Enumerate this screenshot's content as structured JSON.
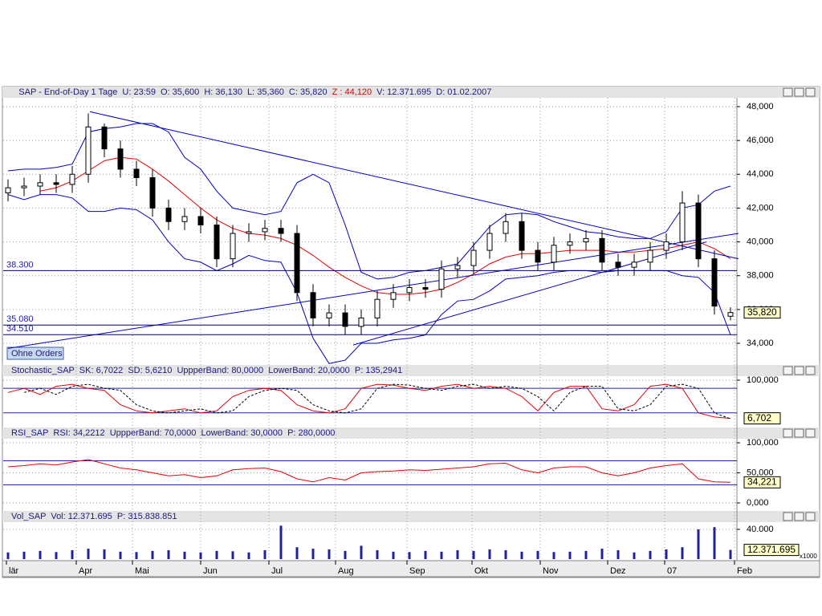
{
  "header": {
    "title": "SAP - End-of-Day 1 Tage",
    "fields": [
      "U: 23:59",
      "O: 35,600",
      "H: 36,130",
      "L: 35,360",
      "C: 35,820"
    ],
    "z": "Z : 44,120",
    "fields2": [
      "V: 12.371.695",
      "D: 01.02.2007"
    ]
  },
  "price": {
    "type": "candlestick",
    "open": [
      42.9,
      43.2,
      43.3,
      43.5,
      43.4,
      44.0,
      46.8,
      45.5,
      44.3,
      43.8,
      42.0,
      41.2,
      41.5,
      41.0,
      39.0,
      40.5,
      40.6,
      40.8,
      40.5,
      37.0,
      35.5,
      35.8,
      35.0,
      35.5,
      36.6,
      37.0,
      37.3,
      37.2,
      38.4,
      38.6,
      39.5,
      40.5,
      41.2,
      39.5,
      38.8,
      39.8,
      40.0,
      40.2,
      38.8,
      38.5,
      38.8,
      39.5,
      40.0,
      42.3,
      39.0,
      35.6
    ],
    "high": [
      43.7,
      43.8,
      44.0,
      44.0,
      44.5,
      47.6,
      47.0,
      46.0,
      44.8,
      44.3,
      42.5,
      42.0,
      42.0,
      41.5,
      41.0,
      41.1,
      41.3,
      41.3,
      41.0,
      37.5,
      36.3,
      36.3,
      36.0,
      37.1,
      37.5,
      37.8,
      37.8,
      38.9,
      39.1,
      40.0,
      41.0,
      41.7,
      41.7,
      40.0,
      40.3,
      40.5,
      40.7,
      40.7,
      39.3,
      39.3,
      40.0,
      40.5,
      43.0,
      42.8,
      39.5,
      36.13
    ],
    "low": [
      42.4,
      42.7,
      42.8,
      42.9,
      42.9,
      43.5,
      45.0,
      43.8,
      43.3,
      41.5,
      40.7,
      40.7,
      40.5,
      38.5,
      38.5,
      40.0,
      40.1,
      40.0,
      36.5,
      35.0,
      35.0,
      34.5,
      34.5,
      35.0,
      36.1,
      36.5,
      36.7,
      36.7,
      37.9,
      38.1,
      39.0,
      40.0,
      39.0,
      38.3,
      38.3,
      39.3,
      39.5,
      38.3,
      38.0,
      38.0,
      38.3,
      39.0,
      39.5,
      38.5,
      35.7,
      35.36
    ],
    "close": [
      43.2,
      43.3,
      43.5,
      43.4,
      44.0,
      46.8,
      45.5,
      44.3,
      43.8,
      42.0,
      41.2,
      41.5,
      41.0,
      39.0,
      40.5,
      40.6,
      40.8,
      40.5,
      37.0,
      35.5,
      35.8,
      35.0,
      35.5,
      36.6,
      37.0,
      37.3,
      37.2,
      38.4,
      38.6,
      39.5,
      40.5,
      41.2,
      39.5,
      38.8,
      39.8,
      40.0,
      40.2,
      38.8,
      38.5,
      38.8,
      39.5,
      40.0,
      42.3,
      39.0,
      36.2,
      35.82
    ],
    "ma": {
      "color": "#e00000",
      "values": [
        null,
        null,
        43.0,
        43.2,
        43.6,
        44.2,
        44.8,
        45.0,
        44.9,
        44.3,
        43.6,
        42.8,
        42.0,
        41.3,
        40.8,
        40.5,
        40.4,
        40.2,
        39.8,
        39.2,
        38.5,
        37.9,
        37.4,
        37.0,
        36.9,
        36.9,
        37.0,
        37.2,
        37.6,
        38.1,
        38.7,
        39.1,
        39.3,
        39.3,
        39.4,
        39.5,
        39.5,
        39.5,
        39.4,
        39.4,
        39.5,
        39.6,
        39.8,
        40.0,
        39.6,
        39.0
      ]
    },
    "upper": {
      "color": "#0000c0",
      "values": [
        44.2,
        44.3,
        44.3,
        44.4,
        44.6,
        46.5,
        46.7,
        46.8,
        47.0,
        47.0,
        46.5,
        45.0,
        44.3,
        43.0,
        42.0,
        41.8,
        41.6,
        41.8,
        43.5,
        44.0,
        43.5,
        41.0,
        38.2,
        37.8,
        37.9,
        38.2,
        38.3,
        38.5,
        38.7,
        39.8,
        40.9,
        41.6,
        41.7,
        41.6,
        41.2,
        40.9,
        40.6,
        40.5,
        40.3,
        40.2,
        40.2,
        40.6,
        42.0,
        42.2,
        43.0,
        43.3
      ]
    },
    "lower": {
      "color": "#0000c0",
      "values": [
        42.8,
        42.5,
        42.8,
        42.8,
        42.6,
        41.8,
        41.8,
        42.0,
        41.9,
        41.3,
        40.0,
        39.0,
        38.8,
        38.3,
        38.7,
        39.2,
        38.9,
        38.8,
        37.0,
        34.3,
        32.8,
        33.0,
        34.0,
        34.0,
        34.2,
        34.3,
        34.5,
        35.7,
        36.5,
        36.6,
        37.1,
        37.8,
        37.9,
        38.0,
        38.2,
        38.3,
        38.3,
        38.2,
        38.3,
        38.3,
        38.3,
        38.3,
        38.0,
        37.9,
        37.0,
        34.5
      ]
    },
    "ylim": [
      32.72,
      48.52
    ],
    "yticks": [
      {
        "value": 34,
        "label": "34,000"
      },
      {
        "value": 36,
        "label": "36,000"
      },
      {
        "value": 38,
        "label": "38,000"
      },
      {
        "value": 40,
        "label": "40,000"
      },
      {
        "value": 42,
        "label": "42,000"
      },
      {
        "value": 44,
        "label": "44,000"
      },
      {
        "value": 46,
        "label": "46,000"
      },
      {
        "value": 48,
        "label": "48,000"
      }
    ],
    "hlines": [
      {
        "value": 38.3,
        "label": "38.300"
      },
      {
        "value": 35.08,
        "label": "35.080"
      },
      {
        "value": 34.51,
        "label": "34.510"
      }
    ],
    "trendlines": [
      {
        "from": [
          5.1,
          47.7
        ],
        "to": [
          45.5,
          39.0
        ]
      },
      {
        "from": [
          0,
          33.7
        ],
        "to": [
          45.5,
          40.5
        ]
      },
      {
        "from": [
          21.5,
          33.9
        ],
        "to": [
          43.5,
          40.0
        ]
      }
    ],
    "last": {
      "value": 35.82,
      "label": "35,820"
    },
    "button": "Ohne Orders"
  },
  "stochastic": {
    "header": "Stochastic_SAP  SK: 6,7022  SD: 5,6210  UppperBand: 80,0000  LowerBand: 20,0000  P: 135,2941",
    "k": {
      "color": "#e00000",
      "values": [
        70,
        80,
        65,
        85,
        90,
        80,
        75,
        40,
        25,
        20,
        25,
        30,
        20,
        25,
        60,
        75,
        80,
        75,
        40,
        25,
        20,
        30,
        80,
        90,
        88,
        80,
        75,
        85,
        90,
        80,
        85,
        80,
        60,
        25,
        70,
        85,
        85,
        30,
        25,
        40,
        85,
        90,
        80,
        20,
        10,
        6.7022
      ]
    },
    "d": {
      "color": "#000000",
      "values": [
        null,
        70,
        80,
        65,
        85,
        90,
        80,
        75,
        40,
        25,
        20,
        25,
        30,
        20,
        25,
        60,
        75,
        80,
        75,
        40,
        25,
        20,
        30,
        80,
        90,
        88,
        80,
        75,
        85,
        90,
        80,
        85,
        80,
        60,
        25,
        70,
        85,
        85,
        30,
        25,
        40,
        85,
        90,
        80,
        20,
        5.621
      ]
    },
    "bands": [
      80,
      20
    ],
    "ylim": [
      -13.7,
      107.8
    ],
    "yticks": [
      {
        "value": 100,
        "label": "100,000"
      }
    ],
    "last": {
      "value": 6.7022,
      "label": "6,702"
    }
  },
  "rsi": {
    "header": "RSI_SAP  RSI: 34,2212  UppperBand: 70,0000  LowerBand: 30,0000  P: 280,0000",
    "values": [
      60,
      62,
      65,
      63,
      68,
      72,
      65,
      58,
      55,
      50,
      45,
      47,
      42,
      45,
      55,
      57,
      58,
      52,
      40,
      35,
      42,
      38,
      50,
      52,
      53,
      55,
      54,
      56,
      58,
      60,
      65,
      66,
      55,
      50,
      58,
      60,
      60,
      50,
      45,
      50,
      58,
      62,
      65,
      40,
      35,
      34.2212
    ],
    "color": "#e00000",
    "bands": [
      70,
      30
    ],
    "ylim": [
      -12,
      106.7
    ],
    "yticks": [
      {
        "value": 0,
        "label": "0,000"
      },
      {
        "value": 50,
        "label": "50,000"
      },
      {
        "value": 100,
        "label": "100,000"
      }
    ],
    "last": {
      "value": 34.2212,
      "label": "34,221"
    }
  },
  "volume": {
    "header": "Vol_SAP  Vol: 12.371.695  P: 315.838.851",
    "values": [
      9000,
      10000,
      11000,
      9500,
      12000,
      14000,
      13000,
      10000,
      9500,
      11000,
      12000,
      10000,
      9000,
      11000,
      10500,
      9000,
      12000,
      45000,
      16000,
      14000,
      13000,
      11000,
      18000,
      12000,
      10000,
      9500,
      11000,
      10000,
      12000,
      11000,
      13000,
      12000,
      10000,
      11000,
      9500,
      10000,
      11000,
      14000,
      12000,
      9000,
      11000,
      13000,
      16000,
      40000,
      43000,
      12371.695
    ],
    "color": "#2020a0",
    "ylim": [
      -1000,
      49700
    ],
    "yticks": [
      {
        "value": 40000,
        "label": "40.000"
      }
    ],
    "unit": "x1000",
    "last": {
      "value": 12371.695,
      "label": "12.371.695"
    }
  },
  "dates": [
    {
      "label": "lär",
      "pos": -0.1
    },
    {
      "label": "Apr",
      "pos": 4.25
    },
    {
      "label": "Mai",
      "pos": 7.75
    },
    {
      "label": "Jun",
      "pos": 12
    },
    {
      "label": "Jul",
      "pos": 16.25
    },
    {
      "label": "Aug",
      "pos": 20.4
    },
    {
      "label": "Sep",
      "pos": 24.85
    },
    {
      "label": "Okt",
      "pos": 28.9
    },
    {
      "label": "Nov",
      "pos": 33.15
    },
    {
      "label": "Dez",
      "pos": 37.35
    },
    {
      "label": "07",
      "pos": 40.9
    },
    {
      "label": "Feb",
      "pos": 45.25
    }
  ]
}
